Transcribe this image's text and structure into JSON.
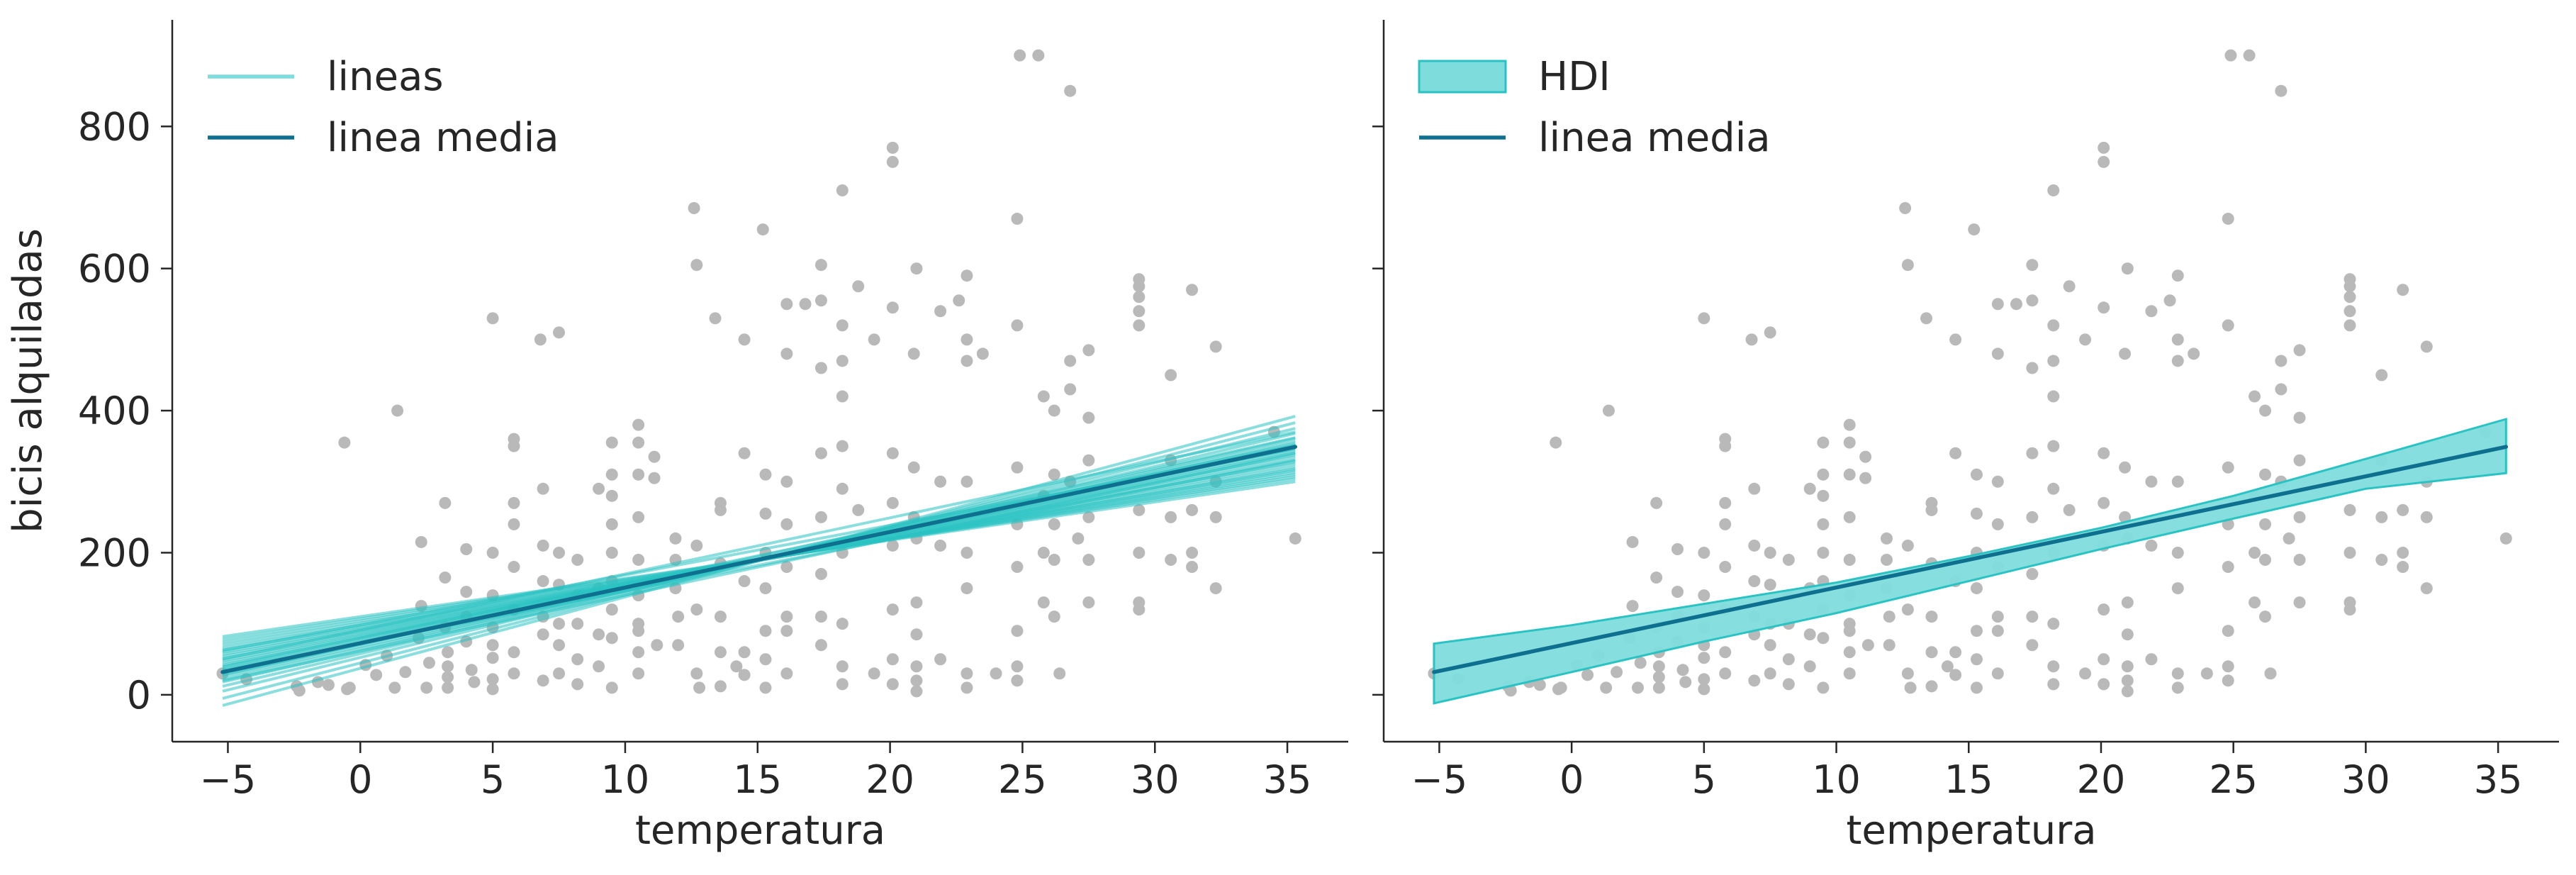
{
  "chart_data": [
    {
      "type": "line",
      "panel": "left",
      "xlabel": "temperatura",
      "ylabel": "bicis alquiladas",
      "xlim": [
        -7.1,
        37.3
      ],
      "ylim": [
        -66,
        950
      ],
      "xticks": [
        -5,
        0,
        5,
        10,
        15,
        20,
        25,
        30,
        35
      ],
      "yticks": [
        0,
        200,
        400,
        600,
        800
      ],
      "legend": {
        "placement": "top-left",
        "entries": [
          "lineas",
          "linea media"
        ]
      },
      "colors": {
        "lines": "#2ac3c3",
        "mean_line": "#0e6f8e",
        "points": "#b9b9b9",
        "legend_lines": "#7fdcdc"
      },
      "mean_line": {
        "name": "linea media",
        "x": [
          -5.2,
          35.3
        ],
        "y": [
          32,
          349
        ]
      },
      "sample_lines": {
        "name": "lineas",
        "lines": [
          {
            "y0": -15,
            "y1": 392
          },
          {
            "y0": -5,
            "y1": 383
          },
          {
            "y0": 5,
            "y1": 375
          },
          {
            "y0": 12,
            "y1": 368
          },
          {
            "y0": 18,
            "y1": 361
          },
          {
            "y0": 22,
            "y1": 357
          },
          {
            "y0": 26,
            "y1": 354
          },
          {
            "y0": 30,
            "y1": 351
          },
          {
            "y0": 33,
            "y1": 347
          },
          {
            "y0": 36,
            "y1": 344
          },
          {
            "y0": 39,
            "y1": 341
          },
          {
            "y0": 42,
            "y1": 338
          },
          {
            "y0": 45,
            "y1": 335
          },
          {
            "y0": 48,
            "y1": 331
          },
          {
            "y0": 51,
            "y1": 328
          },
          {
            "y0": 54,
            "y1": 325
          },
          {
            "y0": 57,
            "y1": 321
          },
          {
            "y0": 60,
            "y1": 318
          },
          {
            "y0": 63,
            "y1": 316
          },
          {
            "y0": 66,
            "y1": 313
          },
          {
            "y0": 70,
            "y1": 310
          },
          {
            "y0": 74,
            "y1": 307
          },
          {
            "y0": 78,
            "y1": 304
          },
          {
            "y0": 82,
            "y1": 300
          },
          {
            "y0": 28,
            "y1": 362
          },
          {
            "y0": 40,
            "y1": 352
          },
          {
            "y0": 20,
            "y1": 340
          },
          {
            "y0": 50,
            "y1": 370
          },
          {
            "y0": 35,
            "y1": 330
          },
          {
            "y0": 62,
            "y1": 346
          }
        ]
      },
      "points": [
        [
          -5.2,
          30
        ],
        [
          -4.3,
          22
        ],
        [
          -2.4,
          12
        ],
        [
          -2.3,
          6
        ],
        [
          -1.6,
          18
        ],
        [
          -1.2,
          14
        ],
        [
          -0.6,
          355
        ],
        [
          -0.5,
          8
        ],
        [
          -0.4,
          10
        ],
        [
          0.2,
          42
        ],
        [
          0.6,
          28
        ],
        [
          1,
          55
        ],
        [
          1.3,
          10
        ],
        [
          1.4,
          400
        ],
        [
          1.7,
          32
        ],
        [
          2.2,
          80
        ],
        [
          2.3,
          215
        ],
        [
          2.3,
          125
        ],
        [
          2.5,
          10
        ],
        [
          2.6,
          45
        ],
        [
          3.2,
          270
        ],
        [
          3.2,
          165
        ],
        [
          3.2,
          95
        ],
        [
          3.3,
          60
        ],
        [
          3.3,
          40
        ],
        [
          3.3,
          25
        ],
        [
          3.3,
          10
        ],
        [
          4,
          205
        ],
        [
          4,
          145
        ],
        [
          4,
          110
        ],
        [
          4,
          75
        ],
        [
          4.2,
          35
        ],
        [
          4.3,
          18
        ],
        [
          5,
          530
        ],
        [
          5,
          200
        ],
        [
          5,
          140
        ],
        [
          5,
          95
        ],
        [
          5,
          70
        ],
        [
          5,
          52
        ],
        [
          5,
          22
        ],
        [
          5,
          8
        ],
        [
          5.8,
          360
        ],
        [
          5.8,
          350
        ],
        [
          5.8,
          270
        ],
        [
          5.8,
          240
        ],
        [
          5.8,
          180
        ],
        [
          5.8,
          120
        ],
        [
          5.8,
          60
        ],
        [
          5.8,
          30
        ],
        [
          6.8,
          500
        ],
        [
          6.9,
          290
        ],
        [
          6.9,
          210
        ],
        [
          6.9,
          160
        ],
        [
          6.9,
          110
        ],
        [
          6.9,
          85
        ],
        [
          6.9,
          20
        ],
        [
          7.5,
          510
        ],
        [
          7.5,
          200
        ],
        [
          7.5,
          155
        ],
        [
          7.5,
          100
        ],
        [
          7.5,
          70
        ],
        [
          7.5,
          30
        ],
        [
          8.2,
          190
        ],
        [
          8.2,
          140
        ],
        [
          8.2,
          100
        ],
        [
          8.2,
          50
        ],
        [
          8.2,
          15
        ],
        [
          9,
          290
        ],
        [
          9,
          150
        ],
        [
          9,
          85
        ],
        [
          9,
          40
        ],
        [
          9.5,
          355
        ],
        [
          9.5,
          310
        ],
        [
          9.5,
          280
        ],
        [
          9.5,
          240
        ],
        [
          9.5,
          200
        ],
        [
          9.5,
          160
        ],
        [
          9.5,
          120
        ],
        [
          9.5,
          80
        ],
        [
          9.5,
          10
        ],
        [
          10.5,
          380
        ],
        [
          10.5,
          355
        ],
        [
          10.5,
          310
        ],
        [
          10.5,
          250
        ],
        [
          10.5,
          190
        ],
        [
          10.5,
          140
        ],
        [
          10.5,
          100
        ],
        [
          10.5,
          90
        ],
        [
          10.5,
          60
        ],
        [
          10.5,
          30
        ],
        [
          11.1,
          335
        ],
        [
          11.1,
          305
        ],
        [
          11.2,
          70
        ],
        [
          11.9,
          220
        ],
        [
          11.9,
          190
        ],
        [
          11.9,
          150
        ],
        [
          12,
          110
        ],
        [
          12,
          70
        ],
        [
          12.6,
          685
        ],
        [
          12.7,
          605
        ],
        [
          12.7,
          210
        ],
        [
          12.7,
          120
        ],
        [
          12.7,
          30
        ],
        [
          12.8,
          10
        ],
        [
          13.4,
          530
        ],
        [
          13.6,
          270
        ],
        [
          13.6,
          260
        ],
        [
          13.6,
          185
        ],
        [
          13.6,
          110
        ],
        [
          13.6,
          60
        ],
        [
          13.6,
          12
        ],
        [
          14.2,
          40
        ],
        [
          14.5,
          500
        ],
        [
          14.5,
          340
        ],
        [
          14.5,
          160
        ],
        [
          14.5,
          60
        ],
        [
          14.5,
          28
        ],
        [
          15.2,
          655
        ],
        [
          15.3,
          310
        ],
        [
          15.3,
          255
        ],
        [
          15.3,
          200
        ],
        [
          15.3,
          150
        ],
        [
          15.3,
          90
        ],
        [
          15.3,
          50
        ],
        [
          15.3,
          10
        ],
        [
          16.1,
          550
        ],
        [
          16.1,
          480
        ],
        [
          16.1,
          300
        ],
        [
          16.1,
          240
        ],
        [
          16.1,
          180
        ],
        [
          16.1,
          110
        ],
        [
          16.1,
          90
        ],
        [
          16.1,
          30
        ],
        [
          16.8,
          550
        ],
        [
          17.4,
          605
        ],
        [
          17.4,
          555
        ],
        [
          17.4,
          460
        ],
        [
          17.4,
          340
        ],
        [
          17.4,
          250
        ],
        [
          17.4,
          170
        ],
        [
          17.4,
          110
        ],
        [
          17.4,
          70
        ],
        [
          18.2,
          710
        ],
        [
          18.2,
          520
        ],
        [
          18.2,
          470
        ],
        [
          18.2,
          420
        ],
        [
          18.2,
          350
        ],
        [
          18.2,
          290
        ],
        [
          18.2,
          200
        ],
        [
          18.2,
          100
        ],
        [
          18.2,
          40
        ],
        [
          18.2,
          15
        ],
        [
          18.8,
          575
        ],
        [
          18.8,
          260
        ],
        [
          19.4,
          500
        ],
        [
          19.4,
          30
        ],
        [
          20.1,
          770
        ],
        [
          20.1,
          750
        ],
        [
          20.1,
          545
        ],
        [
          20.1,
          340
        ],
        [
          20.1,
          270
        ],
        [
          20.1,
          210
        ],
        [
          20.1,
          120
        ],
        [
          20.1,
          50
        ],
        [
          20.1,
          15
        ],
        [
          20.9,
          480
        ],
        [
          20.9,
          320
        ],
        [
          20.9,
          250
        ],
        [
          21,
          600
        ],
        [
          21,
          220
        ],
        [
          21,
          130
        ],
        [
          21,
          85
        ],
        [
          21,
          40
        ],
        [
          21,
          20
        ],
        [
          21,
          5
        ],
        [
          21.9,
          540
        ],
        [
          21.9,
          300
        ],
        [
          21.9,
          210
        ],
        [
          21.9,
          50
        ],
        [
          22.6,
          555
        ],
        [
          22.9,
          590
        ],
        [
          22.9,
          500
        ],
        [
          22.9,
          470
        ],
        [
          22.9,
          300
        ],
        [
          22.9,
          200
        ],
        [
          22.9,
          150
        ],
        [
          22.9,
          30
        ],
        [
          22.9,
          10
        ],
        [
          23.5,
          480
        ],
        [
          24,
          30
        ],
        [
          24.8,
          670
        ],
        [
          24.8,
          520
        ],
        [
          24.8,
          320
        ],
        [
          24.8,
          240
        ],
        [
          24.8,
          180
        ],
        [
          24.8,
          90
        ],
        [
          24.8,
          40
        ],
        [
          24.8,
          20
        ],
        [
          24.9,
          900
        ],
        [
          25.6,
          900
        ],
        [
          25.8,
          420
        ],
        [
          25.8,
          280
        ],
        [
          25.8,
          200
        ],
        [
          25.8,
          130
        ],
        [
          26.2,
          400
        ],
        [
          26.2,
          310
        ],
        [
          26.2,
          240
        ],
        [
          26.2,
          190
        ],
        [
          26.2,
          110
        ],
        [
          26.4,
          30
        ],
        [
          26.8,
          850
        ],
        [
          26.8,
          470
        ],
        [
          26.8,
          430
        ],
        [
          26.8,
          300
        ],
        [
          27.1,
          220
        ],
        [
          27.5,
          485
        ],
        [
          27.5,
          390
        ],
        [
          27.5,
          330
        ],
        [
          27.5,
          250
        ],
        [
          27.5,
          190
        ],
        [
          27.5,
          130
        ],
        [
          29.4,
          585
        ],
        [
          29.4,
          575
        ],
        [
          29.4,
          560
        ],
        [
          29.4,
          540
        ],
        [
          29.4,
          520
        ],
        [
          29.4,
          260
        ],
        [
          29.4,
          200
        ],
        [
          29.4,
          130
        ],
        [
          29.4,
          120
        ],
        [
          30.6,
          450
        ],
        [
          30.6,
          330
        ],
        [
          30.6,
          250
        ],
        [
          30.6,
          190
        ],
        [
          31.4,
          570
        ],
        [
          31.4,
          260
        ],
        [
          31.4,
          200
        ],
        [
          31.4,
          180
        ],
        [
          32.3,
          490
        ],
        [
          32.3,
          300
        ],
        [
          32.3,
          250
        ],
        [
          32.3,
          150
        ],
        [
          34.5,
          370
        ],
        [
          35.3,
          220
        ]
      ]
    },
    {
      "type": "area",
      "panel": "right",
      "xlabel": "temperatura",
      "ylabel": "",
      "xlim": [
        -7.1,
        37.3
      ],
      "ylim": [
        -66,
        950
      ],
      "xticks": [
        -5,
        0,
        5,
        10,
        15,
        20,
        25,
        30,
        35
      ],
      "yticks": [
        0,
        200,
        400,
        600,
        800
      ],
      "legend": {
        "placement": "top-left",
        "entries": [
          "HDI",
          "linea media"
        ]
      },
      "colors": {
        "hdi_fill": "#7fdcdc",
        "hdi_edge": "#2ac3c3",
        "mean_line": "#0e6f8e",
        "points": "#b9b9b9"
      },
      "mean_line": {
        "name": "linea media",
        "x": [
          -5.2,
          35.3
        ],
        "y": [
          32,
          349
        ]
      },
      "hdi": {
        "name": "HDI",
        "x": [
          -5.2,
          0,
          5,
          10,
          15,
          20,
          25,
          30,
          35.3
        ],
        "upper": [
          72,
          98,
          128,
          158,
          195,
          235,
          280,
          332,
          388
        ],
        "lower": [
          -12,
          32,
          75,
          115,
          160,
          205,
          248,
          290,
          312
        ]
      },
      "points": "same as left panel"
    }
  ]
}
